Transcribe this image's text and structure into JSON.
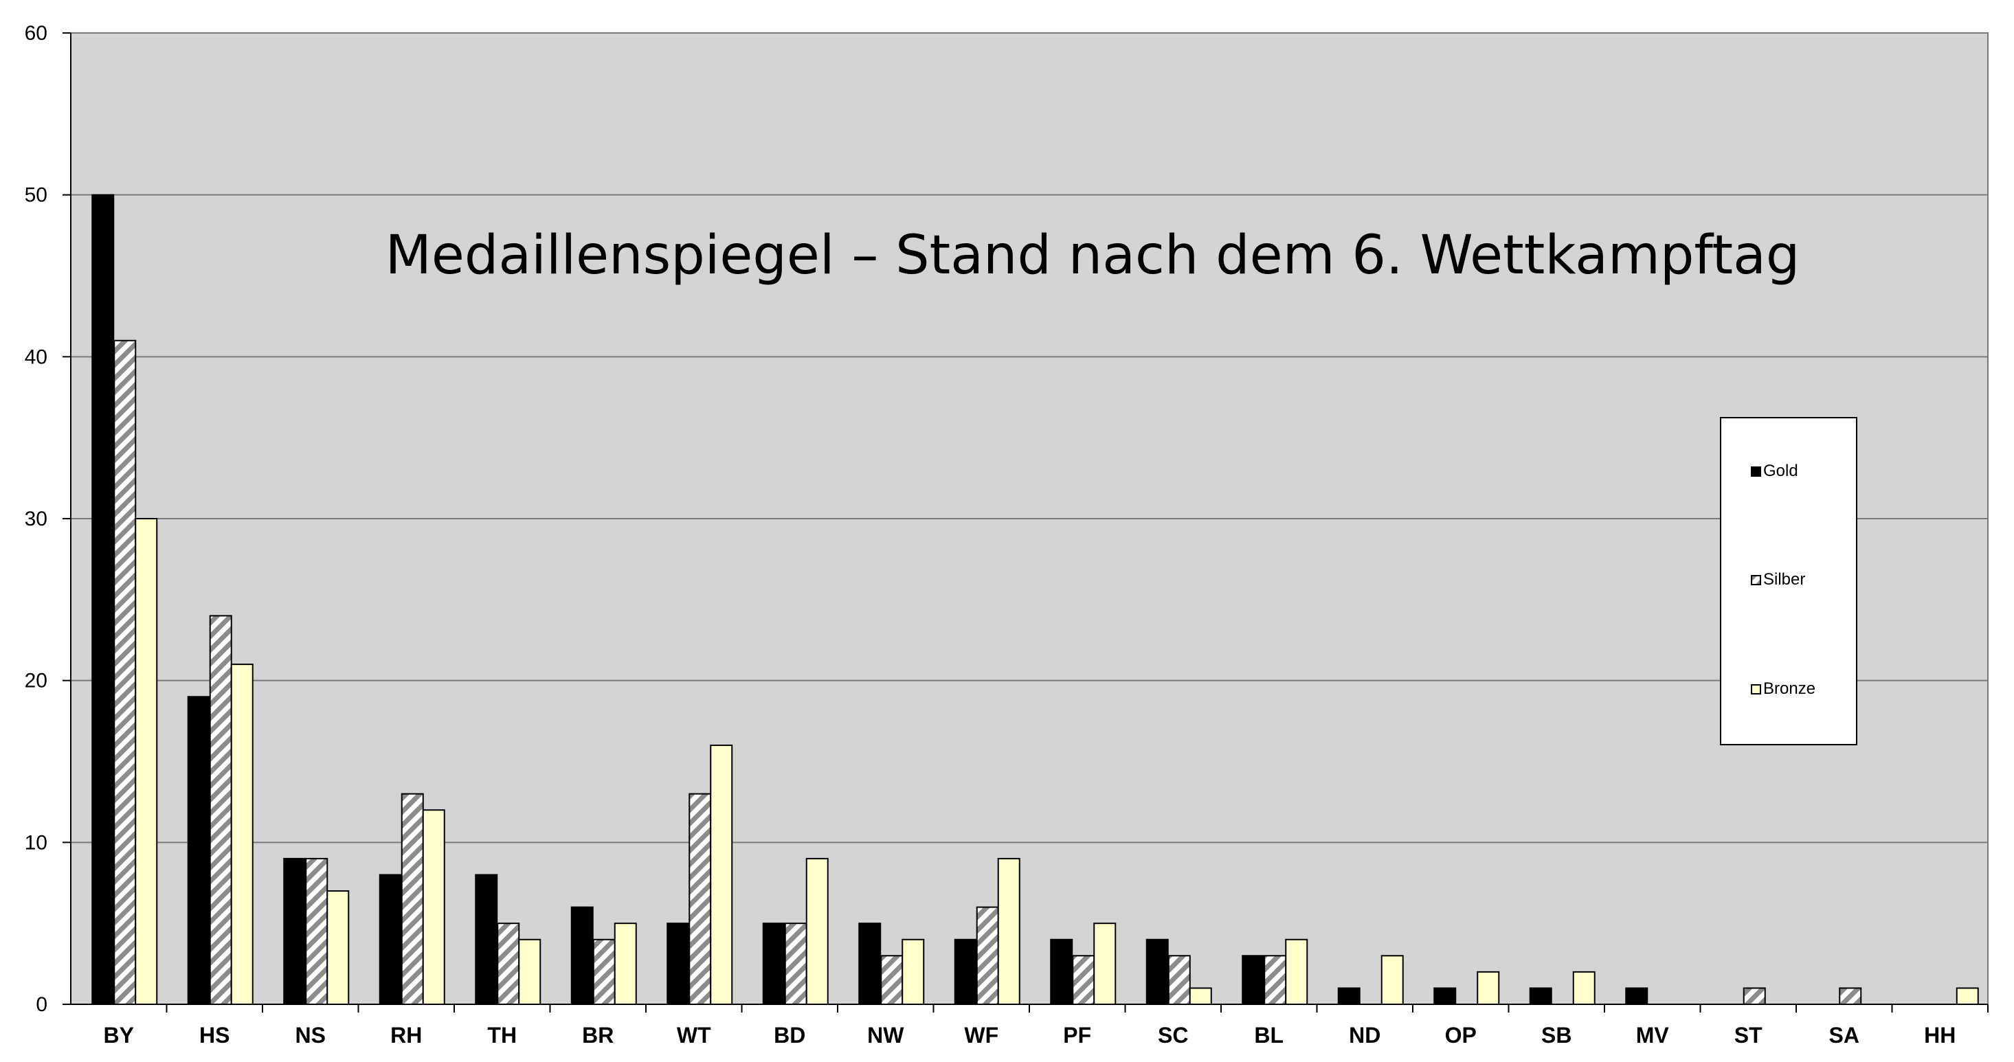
{
  "chart_data": {
    "type": "bar",
    "title": "Medaillenspiegel – Stand nach dem 6. Wettkampftag",
    "xlabel": "",
    "ylabel": "",
    "ylim": [
      0,
      60
    ],
    "yticks": [
      0,
      10,
      20,
      30,
      40,
      50,
      60
    ],
    "grid": true,
    "legend_position": "right",
    "categories": [
      "BY",
      "HS",
      "NS",
      "RH",
      "TH",
      "BR",
      "WT",
      "BD",
      "NW",
      "WF",
      "PF",
      "SC",
      "BL",
      "ND",
      "OP",
      "SB",
      "MV",
      "ST",
      "SA",
      "HH"
    ],
    "series": [
      {
        "name": "Gold",
        "color": "#000000",
        "pattern": "solid",
        "values": [
          50,
          19,
          9,
          8,
          8,
          6,
          5,
          5,
          5,
          4,
          4,
          4,
          3,
          1,
          1,
          1,
          1,
          0,
          0,
          0
        ]
      },
      {
        "name": "Silber",
        "color": "#8c8c8c",
        "pattern": "diagonal-stripes",
        "values": [
          41,
          24,
          9,
          13,
          5,
          4,
          13,
          5,
          3,
          6,
          3,
          3,
          3,
          0,
          0,
          0,
          0,
          1,
          1,
          0
        ]
      },
      {
        "name": "Bronze",
        "color": "#ffffcc",
        "pattern": "solid",
        "values": [
          30,
          21,
          7,
          12,
          4,
          5,
          16,
          9,
          4,
          9,
          5,
          1,
          4,
          3,
          2,
          2,
          0,
          0,
          0,
          1
        ]
      }
    ],
    "plot_background": "#d4d4d4",
    "grid_color": "#7a7a7a"
  }
}
